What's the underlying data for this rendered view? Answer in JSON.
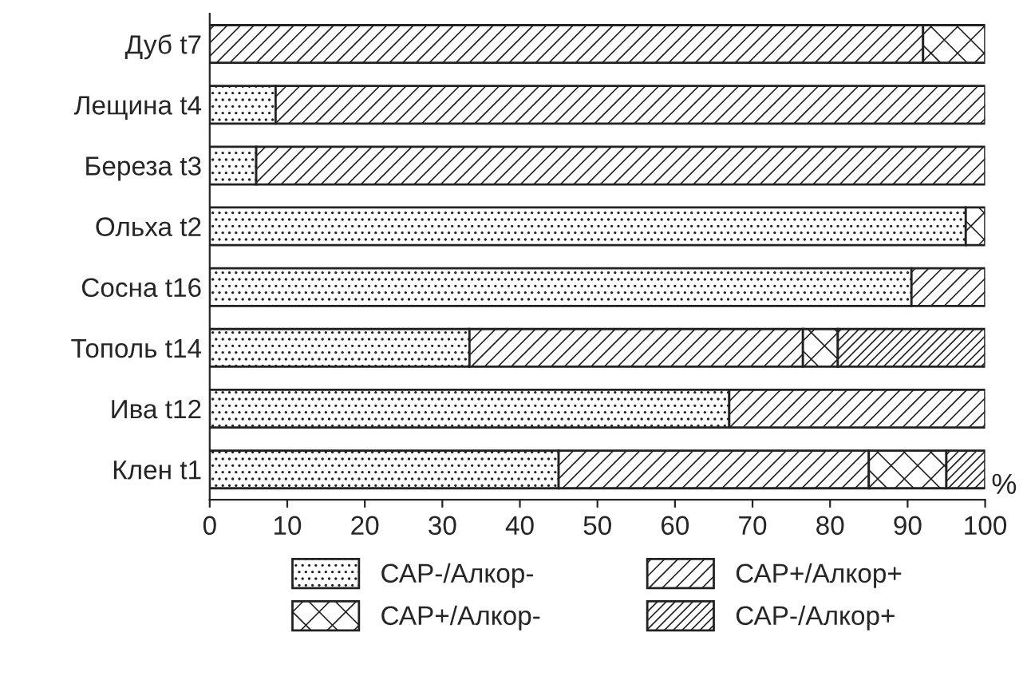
{
  "chart_data": {
    "type": "bar",
    "orientation": "horizontal",
    "stacked": true,
    "categories": [
      "Дуб t7",
      "Лещина t4",
      "Береза t3",
      "Ольха t2",
      "Сосна t16",
      "Тополь t14",
      "Ива t12",
      "Клен t1"
    ],
    "series": [
      {
        "name": "САР-/Алкор-",
        "color": "#222222",
        "values": [
          null,
          8.5,
          6,
          97.5,
          90.5,
          33.5,
          67,
          45
        ]
      },
      {
        "name": "САР+/Алкор+",
        "color": "#222222",
        "values": [
          92,
          91.5,
          94,
          null,
          9.5,
          43,
          33,
          40
        ]
      },
      {
        "name": "САР+/Алкор-",
        "color": "#222222",
        "values": [
          8,
          null,
          null,
          2.5,
          null,
          4.5,
          null,
          10
        ]
      },
      {
        "name": "САР-/Алкор+",
        "color": "#222222",
        "values": [
          null,
          null,
          null,
          null,
          null,
          19,
          null,
          5
        ]
      }
    ],
    "xlabel": "%",
    "xlim": [
      0,
      100
    ],
    "xticks": [
      0,
      10,
      20,
      30,
      40,
      50,
      60,
      70,
      80,
      90,
      100
    ],
    "grid": false,
    "legend": "bottom"
  }
}
